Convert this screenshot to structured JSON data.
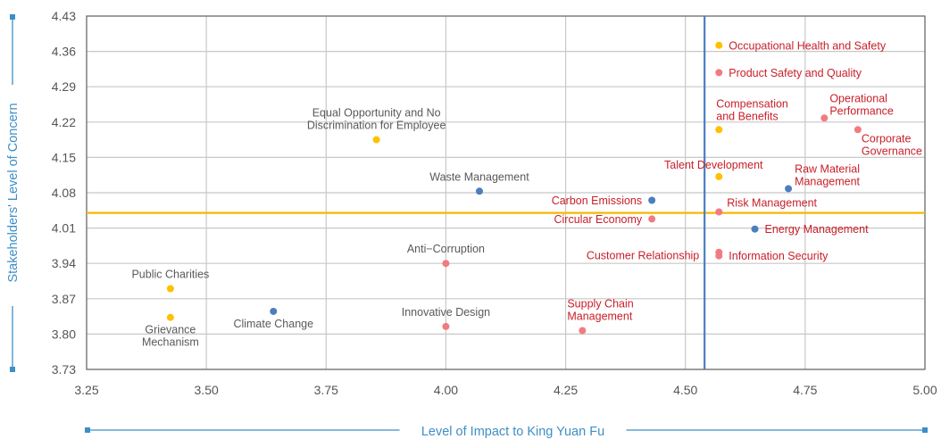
{
  "chart_data": {
    "type": "scatter",
    "title": "",
    "xlabel": "Level of Impact to King Yuan Fu",
    "ylabel": "Stakeholders' Level of Concern",
    "xlim": [
      3.25,
      5.0
    ],
    "ylim": [
      3.73,
      4.43
    ],
    "x_ticks": [
      "3.25",
      "3.50",
      "3.75",
      "4.00",
      "4.25",
      "4.50",
      "4.75",
      "5.00"
    ],
    "y_ticks": [
      "4.43",
      "4.36",
      "4.29",
      "4.22",
      "4.15",
      "4.08",
      "4.01",
      "3.94",
      "3.87",
      "3.80",
      "3.73"
    ],
    "grid": true,
    "reference_lines": {
      "vertical_x": 4.54,
      "vertical_color": "#4a7ebf",
      "horizontal_y": 4.04,
      "horizontal_color": "#f5b800"
    },
    "colors": {
      "yellow": "#ffc000",
      "pink": "#f07c82",
      "blue": "#4a7ebf",
      "label_red": "#c8202a",
      "label_gray": "#595959",
      "axis_title": "#3d8fc6"
    },
    "points": [
      {
        "name": "Occupational Health and Safety",
        "lines": [
          "Occupational Health and Safety"
        ],
        "x": 4.57,
        "y": 4.372,
        "color": "yellow",
        "label_color": "label_red",
        "pos": "right"
      },
      {
        "name": "Product Safety and Quality",
        "lines": [
          "Product Safety and Quality"
        ],
        "x": 4.57,
        "y": 4.318,
        "color": "pink",
        "label_color": "label_red",
        "pos": "right"
      },
      {
        "name": "Compensation and Benefits",
        "lines": [
          "Compensation",
          "and Benefits"
        ],
        "x": 4.57,
        "y": 4.205,
        "color": "yellow",
        "label_color": "label_red",
        "pos": "above-right"
      },
      {
        "name": "Operational Performance",
        "lines": [
          "Operational",
          "Performance"
        ],
        "x": 4.79,
        "y": 4.228,
        "color": "pink",
        "label_color": "label_red",
        "pos": "above-right"
      },
      {
        "name": "Corporate Governance",
        "lines": [
          "Corporate",
          "Governance"
        ],
        "x": 4.86,
        "y": 4.205,
        "color": "pink",
        "label_color": "label_red",
        "pos": "below-right"
      },
      {
        "name": "Talent Development",
        "lines": [
          "Talent Development"
        ],
        "x": 4.57,
        "y": 4.112,
        "color": "yellow",
        "label_color": "label_red",
        "pos": "above"
      },
      {
        "name": "Raw Material Management",
        "lines": [
          "Raw Material",
          "Management"
        ],
        "x": 4.715,
        "y": 4.088,
        "color": "blue",
        "label_color": "label_red",
        "pos": "above-right"
      },
      {
        "name": "Carbon Emissions",
        "lines": [
          "Carbon Emissions"
        ],
        "x": 4.43,
        "y": 4.065,
        "color": "blue",
        "label_color": "label_red",
        "pos": "left"
      },
      {
        "name": "Risk Management",
        "lines": [
          "Risk Management"
        ],
        "x": 4.57,
        "y": 4.042,
        "color": "pink",
        "label_color": "label_red",
        "pos": "above-right"
      },
      {
        "name": "Circular Economy",
        "lines": [
          "Circular Economy"
        ],
        "x": 4.43,
        "y": 4.028,
        "color": "pink",
        "label_color": "label_red",
        "pos": "left"
      },
      {
        "name": "Energy Management",
        "lines": [
          "Energy Management"
        ],
        "x": 4.645,
        "y": 4.008,
        "color": "blue",
        "label_color": "label_red",
        "pos": "right"
      },
      {
        "name": "Customer Relationship",
        "lines": [
          "Customer Relationship"
        ],
        "x": 4.57,
        "y": 3.962,
        "color": "pink",
        "label_color": "label_red",
        "pos": "left-far"
      },
      {
        "name": "Information Security",
        "lines": [
          "Information Security"
        ],
        "x": 4.57,
        "y": 3.955,
        "color": "pink",
        "label_color": "label_red",
        "pos": "right"
      },
      {
        "name": "Equal Opportunity and No Discrimination for Employee",
        "lines": [
          "Equal Opportunity and No",
          "Discrimination for Employee"
        ],
        "x": 3.855,
        "y": 4.185,
        "color": "yellow",
        "label_color": "label_gray",
        "pos": "above"
      },
      {
        "name": "Waste Management",
        "lines": [
          "Waste Management"
        ],
        "x": 4.07,
        "y": 4.083,
        "color": "blue",
        "label_color": "label_gray",
        "pos": "above"
      },
      {
        "name": "Anti-Corruption",
        "lines": [
          "Anti−Corruption"
        ],
        "x": 4.0,
        "y": 3.94,
        "color": "pink",
        "label_color": "label_gray",
        "pos": "above"
      },
      {
        "name": "Public Charities",
        "lines": [
          "Public Charities"
        ],
        "x": 3.425,
        "y": 3.89,
        "color": "yellow",
        "label_color": "label_gray",
        "pos": "above"
      },
      {
        "name": "Grievance Mechanism",
        "lines": [
          "Grievance",
          "Mechanism"
        ],
        "x": 3.425,
        "y": 3.833,
        "color": "yellow",
        "label_color": "label_gray",
        "pos": "below"
      },
      {
        "name": "Climate Change",
        "lines": [
          "Climate Change"
        ],
        "x": 3.64,
        "y": 3.845,
        "color": "blue",
        "label_color": "label_gray",
        "pos": "below"
      },
      {
        "name": "Innovative Design",
        "lines": [
          "Innovative Design"
        ],
        "x": 4.0,
        "y": 3.815,
        "color": "pink",
        "label_color": "label_gray",
        "pos": "above"
      },
      {
        "name": "Supply Chain Management",
        "lines": [
          "Supply Chain",
          "Management"
        ],
        "x": 4.285,
        "y": 3.807,
        "color": "pink",
        "label_color": "label_red",
        "pos": "above-left"
      }
    ]
  }
}
